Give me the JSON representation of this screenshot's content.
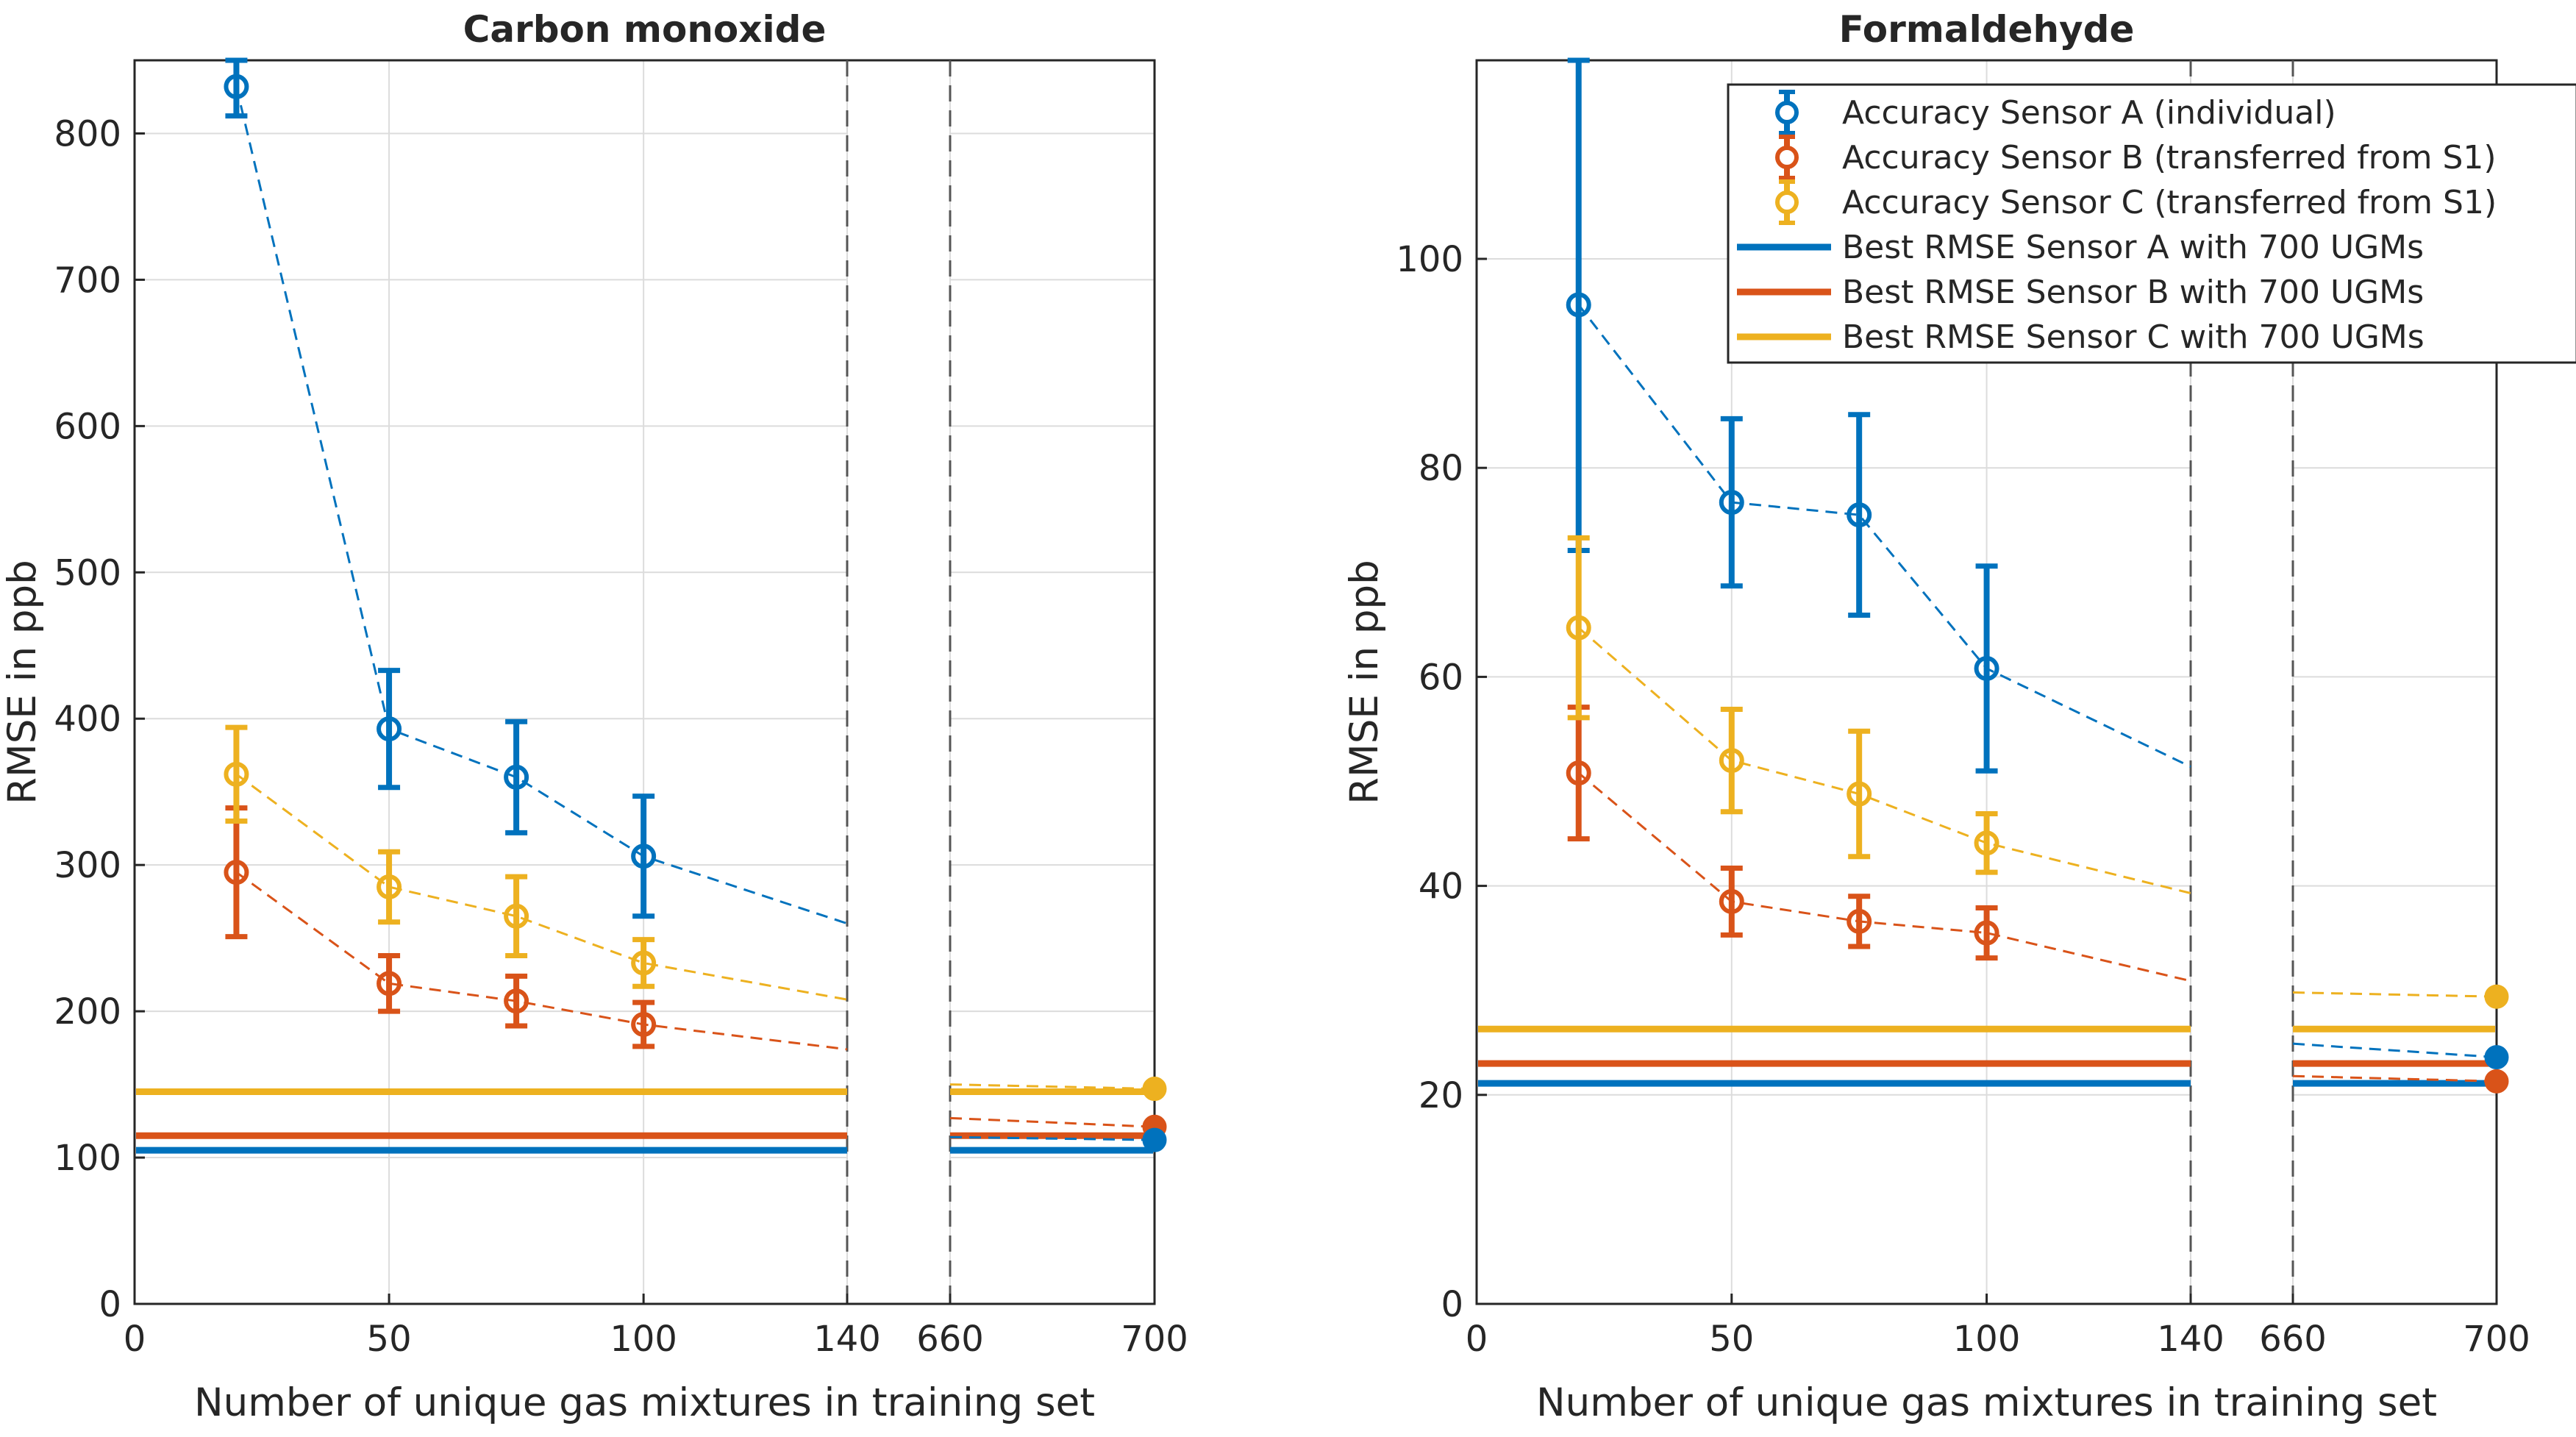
{
  "colors": {
    "sensor_a": "#0072BD",
    "sensor_b": "#D95319",
    "sensor_c": "#EDB120",
    "axis": "#262626",
    "grid": "#dcdcdc",
    "break_line": "#555555"
  },
  "legend": {
    "entries": [
      {
        "label": "Accuracy Sensor A (individual)",
        "series": "A",
        "kind": "marker"
      },
      {
        "label": "Accuracy Sensor B (transferred from S1)",
        "series": "B",
        "kind": "marker"
      },
      {
        "label": "Accuracy Sensor C (transferred from S1)",
        "series": "C",
        "kind": "marker"
      },
      {
        "label": "Best RMSE Sensor A with 700 UGMs",
        "series": "A",
        "kind": "line"
      },
      {
        "label": "Best RMSE Sensor B with 700 UGMs",
        "series": "B",
        "kind": "line"
      },
      {
        "label": "Best RMSE Sensor C with 700 UGMs",
        "series": "C",
        "kind": "line"
      }
    ]
  },
  "chart_data": [
    {
      "type": "line",
      "title": "Carbon monoxide",
      "xlabel": "Number of unique gas mixtures in training set",
      "ylabel": "RMSE in ppb",
      "x_break": [
        140,
        660
      ],
      "xticks": [
        0,
        50,
        100,
        140,
        660,
        700
      ],
      "yticks": [
        0,
        100,
        200,
        300,
        400,
        500,
        600,
        700,
        800
      ],
      "ylim": [
        0,
        850
      ],
      "grid": true,
      "series": [
        {
          "name": "Sensor A",
          "key": "A",
          "x": [
            20,
            50,
            75,
            100
          ],
          "y": [
            832,
            393,
            360,
            306
          ],
          "err": [
            20,
            40,
            38,
            41
          ],
          "trend_end": {
            "x": 140,
            "y": 260
          },
          "tail_start": {
            "x": 660,
            "y": 114
          },
          "final": {
            "x": 700,
            "y": 112
          },
          "best": 105
        },
        {
          "name": "Sensor B",
          "key": "B",
          "x": [
            20,
            50,
            75,
            100
          ],
          "y": [
            295,
            219,
            207,
            191
          ],
          "err": [
            44,
            19,
            17,
            15
          ],
          "trend_end": {
            "x": 140,
            "y": 174
          },
          "tail_start": {
            "x": 660,
            "y": 127
          },
          "final": {
            "x": 700,
            "y": 121
          },
          "best": 115
        },
        {
          "name": "Sensor C",
          "key": "C",
          "x": [
            20,
            50,
            75,
            100
          ],
          "y": [
            362,
            285,
            265,
            233
          ],
          "err": [
            32,
            24,
            27,
            16
          ],
          "trend_end": {
            "x": 140,
            "y": 208
          },
          "tail_start": {
            "x": 660,
            "y": 150
          },
          "final": {
            "x": 700,
            "y": 147
          },
          "best": 145
        }
      ]
    },
    {
      "type": "line",
      "title": "Formaldehyde",
      "xlabel": "Number of unique gas mixtures in training set",
      "ylabel": "RMSE in ppb",
      "x_break": [
        140,
        660
      ],
      "xticks": [
        0,
        50,
        100,
        140,
        660,
        700
      ],
      "yticks": [
        0,
        20,
        40,
        60,
        80,
        100
      ],
      "ylim": [
        0,
        119
      ],
      "grid": true,
      "series": [
        {
          "name": "Sensor A",
          "key": "A",
          "x": [
            20,
            50,
            75,
            100
          ],
          "y": [
            95.6,
            76.7,
            75.5,
            60.8
          ],
          "err": [
            23.5,
            8.0,
            9.6,
            9.8
          ],
          "trend_end": {
            "x": 140,
            "y": 51.4
          },
          "tail_start": {
            "x": 660,
            "y": 24.9
          },
          "final": {
            "x": 700,
            "y": 23.6
          },
          "best": 21.1
        },
        {
          "name": "Sensor B",
          "key": "B",
          "x": [
            20,
            50,
            75,
            100
          ],
          "y": [
            50.8,
            38.5,
            36.6,
            35.5
          ],
          "err": [
            6.3,
            3.2,
            2.4,
            2.4
          ],
          "trend_end": {
            "x": 140,
            "y": 30.9
          },
          "tail_start": {
            "x": 660,
            "y": 21.8
          },
          "final": {
            "x": 700,
            "y": 21.3
          },
          "best": 23.0
        },
        {
          "name": "Sensor C",
          "key": "C",
          "x": [
            20,
            50,
            75,
            100
          ],
          "y": [
            64.7,
            52.0,
            48.8,
            44.1
          ],
          "err": [
            8.6,
            4.9,
            6.0,
            2.8
          ],
          "trend_end": {
            "x": 140,
            "y": 39.3
          },
          "tail_start": {
            "x": 660,
            "y": 29.8
          },
          "final": {
            "x": 700,
            "y": 29.4
          },
          "best": 26.3
        }
      ]
    }
  ]
}
